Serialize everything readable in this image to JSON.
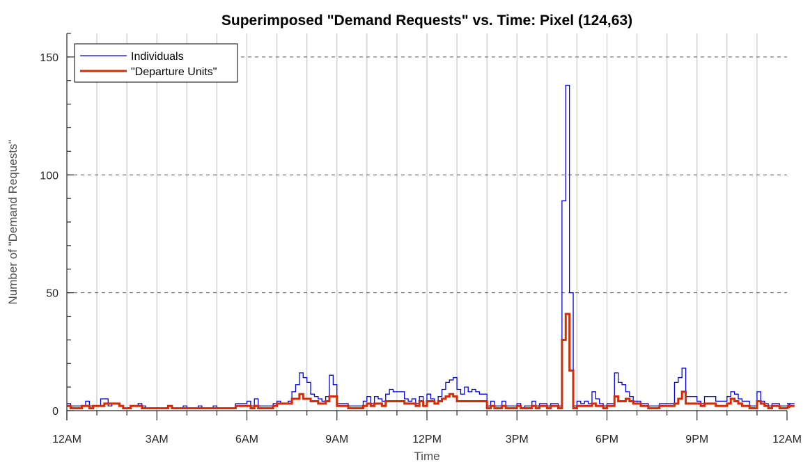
{
  "chart_data": {
    "type": "line",
    "title": "Superimposed \"Demand Requests\" vs. Time: Pixel (124,63)",
    "xlabel": "Time",
    "ylabel": "Number of \"Demand Requests\"",
    "xlim": [
      0,
      24
    ],
    "ylim": [
      0,
      160
    ],
    "x_ticks": [
      0,
      3,
      6,
      9,
      12,
      15,
      18,
      21,
      24
    ],
    "x_tick_labels": [
      "12AM",
      "3AM",
      "6AM",
      "9AM",
      "12PM",
      "3PM",
      "6PM",
      "9PM",
      "12AM"
    ],
    "y_ticks": [
      0,
      50,
      100,
      150
    ],
    "y_tick_labels": [
      "0",
      "50",
      "100",
      "150"
    ],
    "grid": "vertical solid lines at each hour; horizontal dashed lines at 50, 100, 150",
    "legend_position": "top-left",
    "bin_width_hours": 0.125,
    "series": [
      {
        "name": "Individuals",
        "color": "#0000ee",
        "style": "stairs",
        "values": [
          3,
          2,
          2,
          2,
          2,
          4,
          2,
          2,
          2,
          5,
          5,
          2,
          3,
          3,
          2,
          1,
          1,
          2,
          2,
          3,
          2,
          1,
          1,
          1,
          1,
          1,
          1,
          2,
          1,
          1,
          1,
          2,
          1,
          1,
          1,
          2,
          1,
          1,
          1,
          2,
          1,
          1,
          1,
          1,
          1,
          3,
          3,
          3,
          4,
          2,
          5,
          2,
          2,
          2,
          2,
          3,
          4,
          3,
          3,
          4,
          8,
          11,
          16,
          14,
          12,
          7,
          6,
          5,
          4,
          6,
          15,
          11,
          3,
          3,
          3,
          2,
          2,
          2,
          2,
          4,
          6,
          3,
          6,
          5,
          4,
          7,
          9,
          8,
          8,
          8,
          5,
          4,
          5,
          3,
          6,
          2,
          7,
          5,
          3,
          6,
          9,
          12,
          13,
          14,
          9,
          7,
          10,
          8,
          9,
          8,
          7,
          7,
          2,
          4,
          2,
          2,
          4,
          2,
          2,
          2,
          3,
          1,
          2,
          2,
          4,
          2,
          3,
          3,
          2,
          3,
          3,
          2,
          89,
          138,
          50,
          2,
          4,
          3,
          4,
          3,
          8,
          5,
          3,
          2,
          3,
          3,
          16,
          12,
          11,
          8,
          6,
          4,
          4,
          3,
          3,
          2,
          2,
          2,
          3,
          3,
          3,
          3,
          12,
          14,
          18,
          6,
          6,
          6,
          4,
          3,
          6,
          6,
          6,
          4,
          4,
          4,
          6,
          8,
          7,
          5,
          4,
          4,
          2,
          2,
          8,
          4,
          3,
          2,
          3,
          3,
          2,
          2,
          2,
          3,
          3
        ],
        "line_width": 1.3
      },
      {
        "name": "\"Departure Units\"",
        "color": "#d92a06",
        "style": "stairs",
        "values": [
          2,
          1,
          1,
          1,
          2,
          2,
          1,
          2,
          2,
          2,
          3,
          3,
          3,
          3,
          2,
          1,
          1,
          2,
          2,
          2,
          1,
          1,
          1,
          1,
          1,
          1,
          1,
          2,
          1,
          1,
          1,
          1,
          1,
          1,
          1,
          1,
          1,
          1,
          1,
          1,
          1,
          1,
          1,
          1,
          1,
          2,
          2,
          2,
          2,
          1,
          2,
          1,
          1,
          1,
          1,
          2,
          3,
          3,
          3,
          3,
          5,
          5,
          7,
          5,
          5,
          4,
          4,
          3,
          3,
          4,
          6,
          6,
          2,
          2,
          2,
          1,
          1,
          1,
          1,
          2,
          3,
          2,
          3,
          3,
          2,
          4,
          4,
          4,
          4,
          4,
          3,
          3,
          3,
          2,
          4,
          2,
          4,
          4,
          3,
          4,
          5,
          6,
          7,
          6,
          4,
          4,
          4,
          4,
          4,
          4,
          4,
          4,
          1,
          2,
          1,
          1,
          2,
          1,
          1,
          1,
          2,
          1,
          1,
          1,
          2,
          1,
          2,
          2,
          1,
          2,
          2,
          1,
          30,
          41,
          17,
          1,
          2,
          2,
          2,
          2,
          3,
          2,
          2,
          1,
          2,
          2,
          6,
          4,
          4,
          5,
          4,
          3,
          3,
          2,
          2,
          1,
          1,
          1,
          2,
          2,
          2,
          2,
          3,
          5,
          8,
          3,
          3,
          3,
          3,
          2,
          3,
          3,
          3,
          2,
          2,
          2,
          3,
          5,
          4,
          3,
          2,
          2,
          1,
          1,
          4,
          3,
          2,
          1,
          2,
          2,
          1,
          1,
          1,
          2,
          2
        ],
        "line_width": 3
      }
    ]
  }
}
